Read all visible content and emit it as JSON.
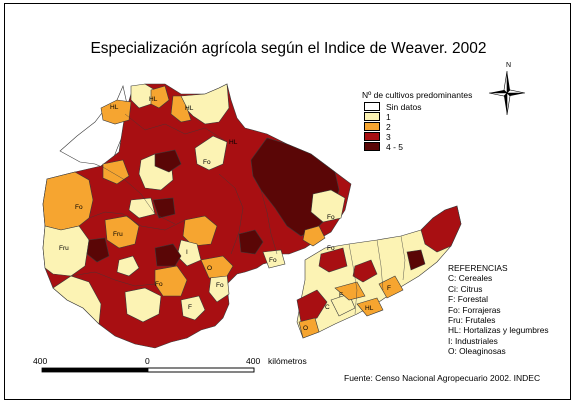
{
  "title": "Especialización agrícola según el Indice de Weaver. 2002",
  "north": "N",
  "colors": {
    "sin_datos": "#ffffff",
    "c1": "#fcf3b4",
    "c2": "#f6a530",
    "c3": "#a80f12",
    "c45": "#5a0606",
    "border": "#3a3a3a"
  },
  "legend": {
    "title": "Nº de cultivos predominantes",
    "items": [
      {
        "label": "Sin datos",
        "color": "#ffffff"
      },
      {
        "label": "1",
        "color": "#fcf3b4"
      },
      {
        "label": "2",
        "color": "#f6a530"
      },
      {
        "label": "3",
        "color": "#a80f12"
      },
      {
        "label": "4 - 5",
        "color": "#5a0606"
      }
    ]
  },
  "map_labels": [
    "HL",
    "HL",
    "HL",
    "Fo",
    "HL",
    "Fo",
    "Fru",
    "Fru",
    "I",
    "Fo",
    "Fo",
    "C",
    "Fo",
    "F",
    "Fo",
    "O",
    "F",
    "F",
    "Fo",
    "HL",
    "O"
  ],
  "references": {
    "heading": "REFERENCIAS",
    "items": [
      "C: Cereales",
      "Ci: Citrus",
      "F: Forestal",
      "Fo: Forrajeras",
      "Fru: Frutales",
      "HL: Hortalizas y legumbres",
      "I: Industriales",
      "O: Oleaginosas"
    ]
  },
  "scale": {
    "left": "400",
    "mid": "0",
    "right": "400",
    "unit": "kilómetros"
  },
  "source": "Fuente: Censo Nacional Agropecuario 2002. INDEC"
}
